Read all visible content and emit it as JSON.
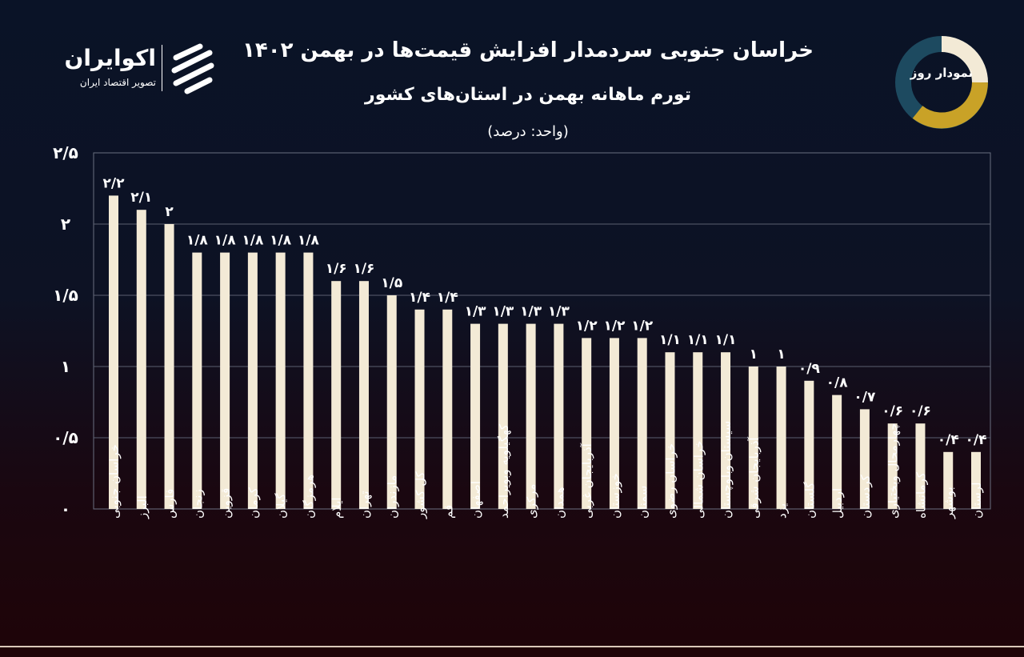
{
  "header": {
    "brand_name": "اکوایران",
    "brand_tagline": "تصویر اقتصاد ایران",
    "badge_text": "نمودار روز",
    "colors": {
      "badge_light": "#f3ead6",
      "badge_gold": "#c9a227",
      "badge_teal": "#1d4a60"
    }
  },
  "chart_data": {
    "type": "bar",
    "title": "خراسان جنوبی سردمدار افزایش قیمت‌ها در بهمن ۱۴۰۲",
    "subtitle": "تورم ماهانه بهمن در استان‌های کشور",
    "unit": "(واحد: درصد)",
    "ylim": [
      0,
      2.5
    ],
    "grid": true,
    "bar_color": "#f3ead6",
    "yticks": [
      0,
      0.5,
      1,
      1.5,
      2,
      2.5
    ],
    "ytick_labels": [
      "۰",
      "۰/۵",
      "۱",
      "۱/۵",
      "۲",
      "۲/۵"
    ],
    "categories": [
      "خراسان جنوبی",
      "البرز",
      "فارس",
      "زنجان",
      "قزوین",
      "کرمان",
      "گیلان",
      "هرمزگان",
      "ایلام",
      "تهران",
      "مازندران",
      "کل کشور",
      "قم",
      "اصفهان",
      "کهگیلویه وبویراحمد",
      "مرکزی",
      "همدان",
      "آذربایجان غربی",
      "خوزستان",
      "سمنان",
      "خراسان رضوی",
      "خراسان شمالی",
      "سیستان وبلوچستان",
      "آذربایجان شرقی",
      "یزد",
      "گلستان",
      "اردبیل",
      "کردستان",
      "چهارمحال وبختیاری",
      "کرمانشاه",
      "بوشهر",
      "لرستان"
    ],
    "values": [
      2.2,
      2.1,
      2,
      1.8,
      1.8,
      1.8,
      1.8,
      1.8,
      1.6,
      1.6,
      1.5,
      1.4,
      1.4,
      1.3,
      1.3,
      1.3,
      1.3,
      1.2,
      1.2,
      1.2,
      1.1,
      1.1,
      1.1,
      1,
      1,
      0.9,
      0.8,
      0.7,
      0.6,
      0.6,
      0.4,
      0.4
    ],
    "data_labels": [
      "۲/۲",
      "۲/۱",
      "۲",
      "۱/۸",
      "۱/۸",
      "۱/۸",
      "۱/۸",
      "۱/۸",
      "۱/۶",
      "۱/۶",
      "۱/۵",
      "۱/۴",
      "۱/۴",
      "۱/۳",
      "۱/۳",
      "۱/۳",
      "۱/۳",
      "۱/۲",
      "۱/۲",
      "۱/۲",
      "۱/۱",
      "۱/۱",
      "۱/۱",
      "۱",
      "۱",
      "۰/۹",
      "۰/۸",
      "۰/۷",
      "۰/۶",
      "۰/۶",
      "۰/۴",
      "۰/۴"
    ]
  }
}
